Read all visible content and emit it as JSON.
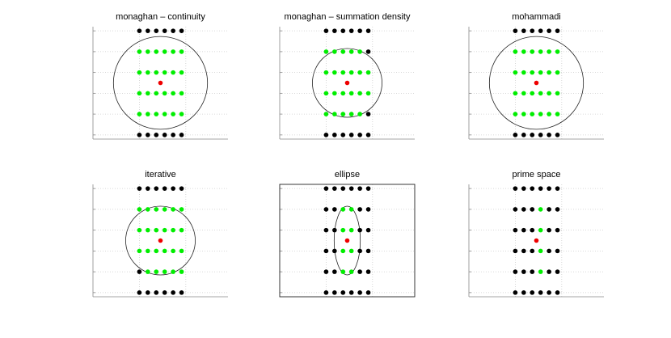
{
  "chart_data": [
    {
      "type": "scatter",
      "title": "monaghan – continuity",
      "xlim": [
        -3.2,
        3.2
      ],
      "ylim": [
        -2.7,
        2.7
      ],
      "xticks": [
        -1,
        1.2
      ],
      "yticks": [
        -2.5,
        -1.5,
        -0.5,
        0.5,
        1.5,
        2.5
      ],
      "grid": true,
      "box": false,
      "ellipse": {
        "cx": 0,
        "cy": 0,
        "rx": 2.23,
        "ry": 2.23
      },
      "series": [
        {
          "color": "#000000",
          "x": [
            -1,
            -0.6,
            -0.2,
            0.2,
            0.6,
            1,
            -1,
            -0.6,
            -0.2,
            0.2,
            0.6,
            1
          ],
          "y": [
            2.5,
            2.5,
            2.5,
            2.5,
            2.5,
            2.5,
            -2.5,
            -2.5,
            -2.5,
            -2.5,
            -2.5,
            -2.5
          ]
        },
        {
          "color": "#00ee00",
          "x": [
            -1,
            -0.6,
            -0.2,
            0.2,
            0.6,
            1,
            -1,
            -0.6,
            -0.2,
            0.2,
            0.6,
            1,
            -1,
            -0.6,
            -0.2,
            0.2,
            0.6,
            1,
            -1,
            -0.6,
            -0.2,
            0.2,
            0.6,
            1
          ],
          "y": [
            1.5,
            1.5,
            1.5,
            1.5,
            1.5,
            1.5,
            0.5,
            0.5,
            0.5,
            0.5,
            0.5,
            0.5,
            -0.5,
            -0.5,
            -0.5,
            -0.5,
            -0.5,
            -0.5,
            -1.5,
            -1.5,
            -1.5,
            -1.5,
            -1.5,
            -1.5
          ]
        },
        {
          "color": "#ee0000",
          "x": [
            0
          ],
          "y": [
            0
          ]
        }
      ]
    },
    {
      "type": "scatter",
      "title": "monaghan – summation density",
      "xlim": [
        -3.2,
        3.2
      ],
      "ylim": [
        -2.7,
        2.7
      ],
      "xticks": [
        -1,
        1.2
      ],
      "yticks": [
        -2.5,
        -1.5,
        -0.5,
        0.5,
        1.5,
        2.5
      ],
      "grid": true,
      "box": false,
      "ellipse": {
        "cx": 0,
        "cy": 0,
        "rx": 1.65,
        "ry": 1.65
      },
      "series": [
        {
          "color": "#000000",
          "x": [
            -1,
            -0.6,
            -0.2,
            0.2,
            0.6,
            1,
            -1,
            -0.6,
            -0.2,
            0.2,
            0.6,
            1,
            1,
            1
          ],
          "y": [
            2.5,
            2.5,
            2.5,
            2.5,
            2.5,
            2.5,
            -2.5,
            -2.5,
            -2.5,
            -2.5,
            -2.5,
            -2.5,
            1.5,
            -1.5
          ]
        },
        {
          "color": "#00ee00",
          "x": [
            -1,
            -0.6,
            -0.2,
            0.2,
            0.6,
            -1,
            -0.6,
            -0.2,
            0.2,
            0.6,
            1,
            -1,
            -0.6,
            -0.2,
            0.2,
            0.6,
            1,
            -1,
            -0.6,
            -0.2,
            0.2,
            0.6
          ],
          "y": [
            1.5,
            1.5,
            1.5,
            1.5,
            1.5,
            0.5,
            0.5,
            0.5,
            0.5,
            0.5,
            0.5,
            -0.5,
            -0.5,
            -0.5,
            -0.5,
            -0.5,
            -0.5,
            -1.5,
            -1.5,
            -1.5,
            -1.5,
            -1.5
          ]
        },
        {
          "color": "#ee0000",
          "x": [
            0
          ],
          "y": [
            0
          ]
        }
      ]
    },
    {
      "type": "scatter",
      "title": "mohammadi",
      "xlim": [
        -3.2,
        3.2
      ],
      "ylim": [
        -2.7,
        2.7
      ],
      "xticks": [
        -1,
        1.2
      ],
      "yticks": [
        -2.5,
        -1.5,
        -0.5,
        0.5,
        1.5,
        2.5
      ],
      "grid": true,
      "box": false,
      "ellipse": {
        "cx": 0,
        "cy": 0,
        "rx": 2.23,
        "ry": 2.23
      },
      "series": [
        {
          "color": "#000000",
          "x": [
            -1,
            -0.6,
            -0.2,
            0.2,
            0.6,
            1,
            -1,
            -0.6,
            -0.2,
            0.2,
            0.6,
            1
          ],
          "y": [
            2.5,
            2.5,
            2.5,
            2.5,
            2.5,
            2.5,
            -2.5,
            -2.5,
            -2.5,
            -2.5,
            -2.5,
            -2.5
          ]
        },
        {
          "color": "#00ee00",
          "x": [
            -1,
            -0.6,
            -0.2,
            0.2,
            0.6,
            1,
            -1,
            -0.6,
            -0.2,
            0.2,
            0.6,
            1,
            -1,
            -0.6,
            -0.2,
            0.2,
            0.6,
            1,
            -1,
            -0.6,
            -0.2,
            0.2,
            0.6,
            1
          ],
          "y": [
            1.5,
            1.5,
            1.5,
            1.5,
            1.5,
            1.5,
            0.5,
            0.5,
            0.5,
            0.5,
            0.5,
            0.5,
            -0.5,
            -0.5,
            -0.5,
            -0.5,
            -0.5,
            -0.5,
            -1.5,
            -1.5,
            -1.5,
            -1.5,
            -1.5,
            -1.5
          ]
        },
        {
          "color": "#ee0000",
          "x": [
            0
          ],
          "y": [
            0
          ]
        }
      ]
    },
    {
      "type": "scatter",
      "title": "iterative",
      "xlim": [
        -3.2,
        3.2
      ],
      "ylim": [
        -2.7,
        2.7
      ],
      "xticks": [
        -1,
        1.2
      ],
      "yticks": [
        -2.5,
        -1.5,
        -0.5,
        0.5,
        1.5,
        2.5
      ],
      "grid": true,
      "box": false,
      "ellipse": {
        "cx": 0,
        "cy": 0,
        "rx": 1.65,
        "ry": 1.65
      },
      "series": [
        {
          "color": "#000000",
          "x": [
            -1,
            -0.6,
            -0.2,
            0.2,
            0.6,
            1,
            -1,
            -0.6,
            -0.2,
            0.2,
            0.6,
            1,
            -1
          ],
          "y": [
            2.5,
            2.5,
            2.5,
            2.5,
            2.5,
            2.5,
            -2.5,
            -2.5,
            -2.5,
            -2.5,
            -2.5,
            -2.5,
            -1.5
          ]
        },
        {
          "color": "#00ee00",
          "x": [
            -1,
            -0.6,
            -0.2,
            0.2,
            0.6,
            1,
            -1,
            -0.6,
            -0.2,
            0.2,
            0.6,
            1,
            -1,
            -0.6,
            -0.2,
            0.2,
            0.6,
            1,
            -0.6,
            -0.2,
            0.2,
            0.6,
            1
          ],
          "y": [
            1.5,
            1.5,
            1.5,
            1.5,
            1.5,
            1.5,
            0.5,
            0.5,
            0.5,
            0.5,
            0.5,
            0.5,
            -0.5,
            -0.5,
            -0.5,
            -0.5,
            -0.5,
            -0.5,
            -1.5,
            -1.5,
            -1.5,
            -1.5,
            -1.5
          ]
        },
        {
          "color": "#ee0000",
          "x": [
            0
          ],
          "y": [
            0
          ]
        }
      ]
    },
    {
      "type": "scatter",
      "title": "ellipse",
      "xlim": [
        -3.2,
        3.2
      ],
      "ylim": [
        -2.7,
        2.7
      ],
      "xticks": [
        -1,
        1.2
      ],
      "yticks": [
        -2.5,
        -1.5,
        -0.5,
        0.5,
        1.5,
        2.5
      ],
      "grid": true,
      "box": true,
      "ellipse": {
        "cx": 0,
        "cy": 0,
        "rx": 0.62,
        "ry": 1.65
      },
      "series": [
        {
          "color": "#000000",
          "x": [
            -1,
            -0.6,
            -0.2,
            0.2,
            0.6,
            1,
            -1,
            -0.6,
            -0.2,
            0.2,
            0.6,
            1,
            -1,
            -0.6,
            0.6,
            1,
            -1,
            -0.6,
            0.6,
            1,
            -1,
            -0.6,
            0.6,
            1,
            -1,
            -0.6,
            0.6,
            1
          ],
          "y": [
            2.5,
            2.5,
            2.5,
            2.5,
            2.5,
            2.5,
            -2.5,
            -2.5,
            -2.5,
            -2.5,
            -2.5,
            -2.5,
            1.5,
            1.5,
            1.5,
            1.5,
            0.5,
            0.5,
            0.5,
            0.5,
            -0.5,
            -0.5,
            -0.5,
            -0.5,
            -1.5,
            -1.5,
            -1.5,
            -1.5
          ]
        },
        {
          "color": "#00ee00",
          "x": [
            -0.2,
            0.2,
            -0.2,
            0.2,
            -0.2,
            0.2,
            -0.2,
            0.2
          ],
          "y": [
            1.5,
            1.5,
            0.5,
            0.5,
            -0.5,
            -0.5,
            -1.5,
            -1.5
          ]
        },
        {
          "color": "#ee0000",
          "x": [
            0
          ],
          "y": [
            0
          ]
        }
      ]
    },
    {
      "type": "scatter",
      "title": "prime space",
      "xlim": [
        -3.2,
        3.2
      ],
      "ylim": [
        -2.7,
        2.7
      ],
      "xticks": [
        -1,
        1.2
      ],
      "yticks": [
        -2.5,
        -1.5,
        -0.5,
        0.5,
        1.5,
        2.5
      ],
      "grid": true,
      "box": false,
      "series": [
        {
          "color": "#000000",
          "x": [
            -1,
            -0.6,
            -0.2,
            0.2,
            0.6,
            1,
            -1,
            -0.6,
            -0.2,
            0.2,
            0.6,
            1,
            -1,
            -0.6,
            -0.2,
            0.6,
            1,
            -1,
            -0.6,
            -0.2,
            0.6,
            1,
            -1,
            -0.6,
            -0.2,
            0.6,
            1,
            -1,
            -0.6,
            -0.2,
            0.6,
            1
          ],
          "y": [
            2.5,
            2.5,
            2.5,
            2.5,
            2.5,
            2.5,
            -2.5,
            -2.5,
            -2.5,
            -2.5,
            -2.5,
            -2.5,
            1.5,
            1.5,
            1.5,
            1.5,
            1.5,
            0.5,
            0.5,
            0.5,
            0.5,
            0.5,
            -0.5,
            -0.5,
            -0.5,
            -0.5,
            -0.5,
            -1.5,
            -1.5,
            -1.5,
            -1.5,
            -1.5
          ]
        },
        {
          "color": "#00ee00",
          "x": [
            0.2,
            0.2,
            0.2,
            0.2
          ],
          "y": [
            1.5,
            0.5,
            -0.5,
            -1.5
          ]
        },
        {
          "color": "#ee0000",
          "x": [
            0
          ],
          "y": [
            0
          ]
        }
      ]
    }
  ]
}
